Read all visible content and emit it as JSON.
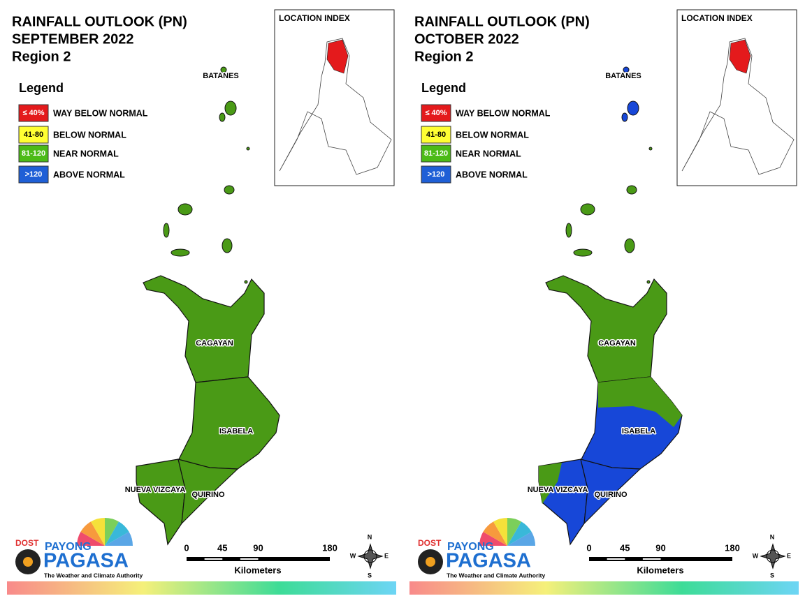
{
  "panels": [
    {
      "title": [
        "RAINFALL OUTLOOK (PN)",
        "SEPTEMBER 2022",
        "Region 2"
      ],
      "legend": {
        "title": "Legend",
        "items": [
          {
            "range": "≤ 40%",
            "label": "WAY BELOW NORMAL",
            "color": "#e41a1c"
          },
          {
            "range": "41-80",
            "label": "BELOW NORMAL",
            "color": "#ffff33"
          },
          {
            "range": "81-120",
            "label": "NEAR NORMAL",
            "color": "#4cbb17"
          },
          {
            "range": ">120",
            "label": "ABOVE NORMAL",
            "color": "#1f5fd6"
          }
        ]
      },
      "location_index": "LOCATION INDEX",
      "provinces": [
        "BATANES",
        "CAGAYAN",
        "ISABELA",
        "NUEVA VIZCAYA",
        "QUIRINO"
      ],
      "scale": {
        "ticks": [
          0,
          45,
          90,
          180
        ],
        "unit": "Kilometers"
      },
      "compass": [
        "N",
        "E",
        "S",
        "W"
      ],
      "logo": {
        "agency": "DOST",
        "name_top": "PAYONG",
        "name": "PAGASA",
        "tagline": "The Weather and Climate Authority"
      }
    },
    {
      "title": [
        "RAINFALL OUTLOOK (PN)",
        "OCTOBER 2022",
        "Region 2"
      ],
      "legend": {
        "title": "Legend",
        "items": [
          {
            "range": "≤ 40%",
            "label": "WAY BELOW NORMAL",
            "color": "#e41a1c"
          },
          {
            "range": "41-80",
            "label": "BELOW NORMAL",
            "color": "#ffff33"
          },
          {
            "range": "81-120",
            "label": "NEAR NORMAL",
            "color": "#4cbb17"
          },
          {
            "range": ">120",
            "label": "ABOVE NORMAL",
            "color": "#1f5fd6"
          }
        ]
      },
      "location_index": "LOCATION INDEX",
      "provinces": [
        "BATANES",
        "CAGAYAN",
        "ISABELA",
        "NUEVA VIZCAYA",
        "QUIRINO"
      ],
      "scale": {
        "ticks": [
          0,
          45,
          90,
          180
        ],
        "unit": "Kilometers"
      },
      "compass": [
        "N",
        "E",
        "S",
        "W"
      ],
      "logo": {
        "agency": "DOST",
        "name_top": "PAYONG",
        "name": "PAGASA",
        "tagline": "The Weather and Climate Authority"
      }
    }
  ]
}
